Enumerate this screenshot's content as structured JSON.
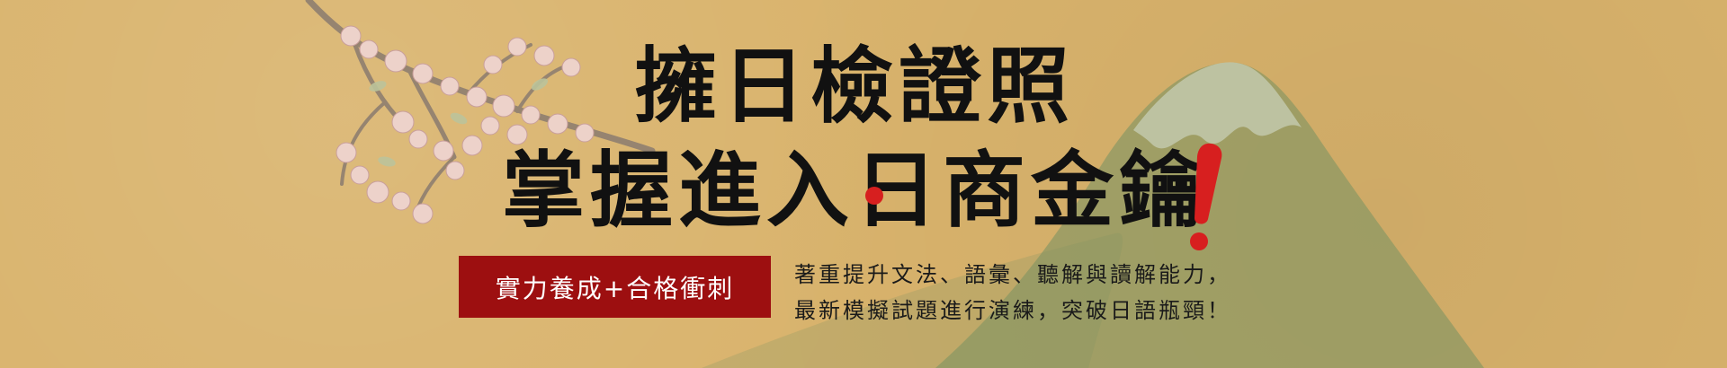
{
  "headline": {
    "line1": "擁日檢證照",
    "line2": "掌握進入日商金鑰"
  },
  "badge": {
    "label": "實力養成+合格衝刺"
  },
  "tagline": {
    "line1": "著重提升文法、語彙、聽解與讀解能力，",
    "line2": "最新模擬試題進行演練，突破日語瓶頸！"
  },
  "colors": {
    "background": "#d9b36c",
    "badge": "#9d0f10",
    "accent_red": "#d71f1f",
    "mountain": "#7f9563"
  },
  "icons": {
    "decor_left": "cherry-blossom-branch",
    "decor_right": "mount-fuji",
    "sun_dot": "rising-sun-circle"
  }
}
